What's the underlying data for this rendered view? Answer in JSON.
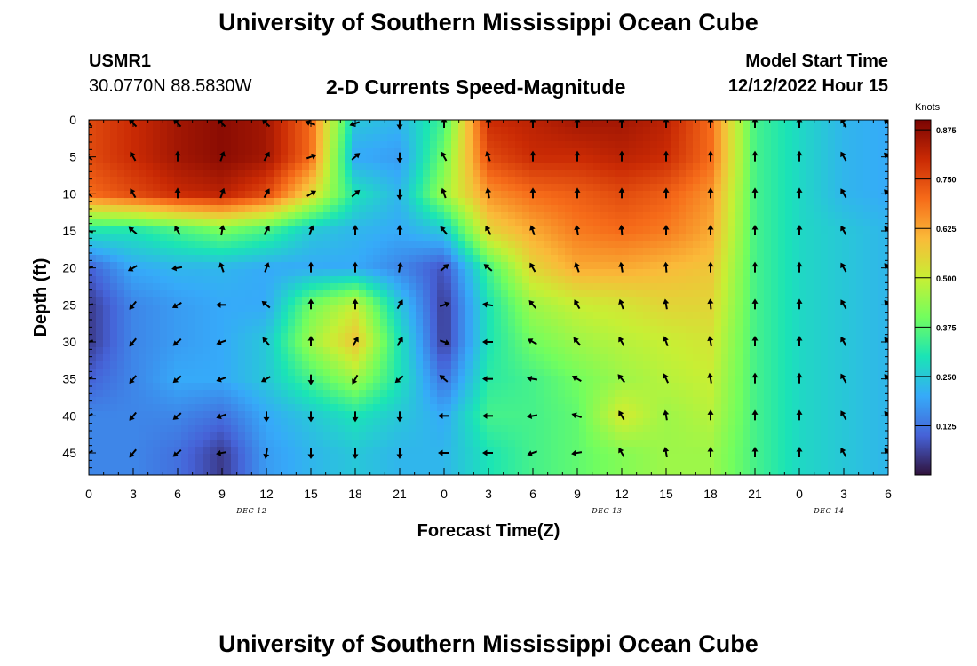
{
  "header": {
    "title": "University of Southern Mississippi Ocean Cube",
    "station": "USMR1",
    "coords": "30.0770N  88.5830W",
    "subtitle": "2-D Currents Speed-Magnitude",
    "model_label": "Model Start Time",
    "model_time": "12/12/2022 Hour 15"
  },
  "footer": {
    "title": "University of Southern Mississippi Ocean Cube"
  },
  "colors": {
    "colormap": [
      "#30123b",
      "#4662d7",
      "#36aaf9",
      "#1ae4b6",
      "#72fe5e",
      "#c8ef34",
      "#faba39",
      "#f66b19",
      "#ca2a04",
      "#7a0403"
    ]
  },
  "chart_data": {
    "type": "heatmap",
    "xlabel": "Forecast Time(Z)",
    "ylabel": "Depth (ft)",
    "colorbar_label": "Knots",
    "colorbar_ticks": [
      "0.125",
      "0.250",
      "0.375",
      "0.500",
      "0.625",
      "0.750",
      "0.875"
    ],
    "colorbar_range": [
      0.0,
      0.9
    ],
    "x_hours_from_start": [
      0,
      3,
      6,
      9,
      12,
      15,
      18,
      21,
      24,
      27,
      30,
      33,
      36,
      39,
      42,
      45,
      48,
      51,
      54
    ],
    "x_tick_labels": [
      "0",
      "3",
      "6",
      "9",
      "12",
      "15",
      "18",
      "21",
      "0",
      "3",
      "6",
      "9",
      "12",
      "15",
      "18",
      "21",
      "0",
      "3",
      "6"
    ],
    "date_labels": [
      {
        "label": "DEC 12",
        "at": 11
      },
      {
        "label": "DEC 13",
        "at": 35
      },
      {
        "label": "DEC 14",
        "at": 50
      }
    ],
    "xlim": [
      0,
      54
    ],
    "y_depths": [
      0,
      5,
      10,
      15,
      20,
      25,
      30,
      35,
      40,
      45
    ],
    "y_tick_labels": [
      "0",
      "5",
      "10",
      "15",
      "20",
      "25",
      "30",
      "35",
      "40",
      "45"
    ],
    "ylim": [
      0,
      48
    ],
    "speed_knots": [
      [
        0.75,
        0.8,
        0.85,
        0.88,
        0.85,
        0.7,
        0.25,
        0.22,
        0.35,
        0.8,
        0.82,
        0.85,
        0.85,
        0.82,
        0.7,
        0.35,
        0.28,
        0.22,
        0.2
      ],
      [
        0.75,
        0.8,
        0.85,
        0.88,
        0.85,
        0.7,
        0.2,
        0.18,
        0.4,
        0.75,
        0.8,
        0.8,
        0.82,
        0.8,
        0.7,
        0.35,
        0.28,
        0.22,
        0.2
      ],
      [
        0.7,
        0.75,
        0.8,
        0.82,
        0.75,
        0.55,
        0.3,
        0.22,
        0.45,
        0.65,
        0.7,
        0.72,
        0.75,
        0.72,
        0.65,
        0.35,
        0.28,
        0.22,
        0.2
      ],
      [
        0.3,
        0.3,
        0.35,
        0.4,
        0.35,
        0.25,
        0.22,
        0.2,
        0.25,
        0.55,
        0.62,
        0.68,
        0.7,
        0.68,
        0.62,
        0.35,
        0.28,
        0.25,
        0.22
      ],
      [
        0.1,
        0.2,
        0.22,
        0.22,
        0.2,
        0.2,
        0.2,
        0.15,
        0.08,
        0.35,
        0.55,
        0.62,
        0.62,
        0.6,
        0.58,
        0.35,
        0.28,
        0.25,
        0.22
      ],
      [
        0.05,
        0.15,
        0.18,
        0.2,
        0.2,
        0.4,
        0.5,
        0.25,
        0.05,
        0.3,
        0.45,
        0.5,
        0.52,
        0.55,
        0.55,
        0.35,
        0.28,
        0.25,
        0.22
      ],
      [
        0.05,
        0.15,
        0.18,
        0.2,
        0.25,
        0.45,
        0.58,
        0.3,
        0.05,
        0.3,
        0.4,
        0.45,
        0.48,
        0.5,
        0.52,
        0.35,
        0.28,
        0.25,
        0.22
      ],
      [
        0.1,
        0.15,
        0.2,
        0.2,
        0.25,
        0.35,
        0.45,
        0.3,
        0.12,
        0.32,
        0.35,
        0.4,
        0.45,
        0.48,
        0.5,
        0.35,
        0.28,
        0.25,
        0.22
      ],
      [
        0.15,
        0.15,
        0.15,
        0.12,
        0.2,
        0.25,
        0.3,
        0.25,
        0.2,
        0.35,
        0.35,
        0.38,
        0.52,
        0.45,
        0.48,
        0.35,
        0.28,
        0.25,
        0.22
      ],
      [
        0.15,
        0.15,
        0.12,
        0.05,
        0.18,
        0.22,
        0.25,
        0.22,
        0.22,
        0.3,
        0.35,
        0.38,
        0.42,
        0.45,
        0.45,
        0.35,
        0.28,
        0.25,
        0.22
      ]
    ],
    "direction_deg": [
      [
        225,
        225,
        225,
        225,
        225,
        200,
        160,
        90,
        270,
        270,
        270,
        270,
        270,
        270,
        270,
        270,
        270,
        240,
        225
      ],
      [
        225,
        240,
        270,
        290,
        300,
        340,
        320,
        90,
        240,
        250,
        270,
        270,
        270,
        270,
        270,
        270,
        270,
        240,
        225
      ],
      [
        225,
        240,
        270,
        290,
        300,
        330,
        320,
        90,
        250,
        260,
        270,
        270,
        270,
        270,
        270,
        270,
        270,
        240,
        225
      ],
      [
        200,
        220,
        240,
        280,
        300,
        290,
        270,
        270,
        230,
        240,
        250,
        260,
        265,
        270,
        270,
        270,
        270,
        240,
        230
      ],
      [
        160,
        150,
        170,
        250,
        290,
        270,
        270,
        280,
        320,
        220,
        240,
        250,
        260,
        265,
        270,
        270,
        270,
        240,
        230
      ],
      [
        170,
        130,
        150,
        180,
        220,
        270,
        270,
        300,
        340,
        190,
        230,
        240,
        250,
        260,
        265,
        270,
        270,
        240,
        230
      ],
      [
        160,
        130,
        140,
        160,
        230,
        270,
        300,
        300,
        20,
        180,
        210,
        230,
        240,
        250,
        260,
        270,
        270,
        240,
        230
      ],
      [
        150,
        130,
        140,
        160,
        150,
        90,
        120,
        140,
        220,
        180,
        190,
        210,
        230,
        245,
        260,
        270,
        270,
        240,
        230
      ],
      [
        150,
        130,
        140,
        160,
        90,
        90,
        90,
        90,
        180,
        180,
        170,
        200,
        240,
        260,
        270,
        270,
        270,
        240,
        230
      ],
      [
        150,
        130,
        140,
        170,
        100,
        90,
        90,
        90,
        180,
        180,
        160,
        170,
        240,
        260,
        270,
        270,
        270,
        240,
        230
      ]
    ]
  }
}
